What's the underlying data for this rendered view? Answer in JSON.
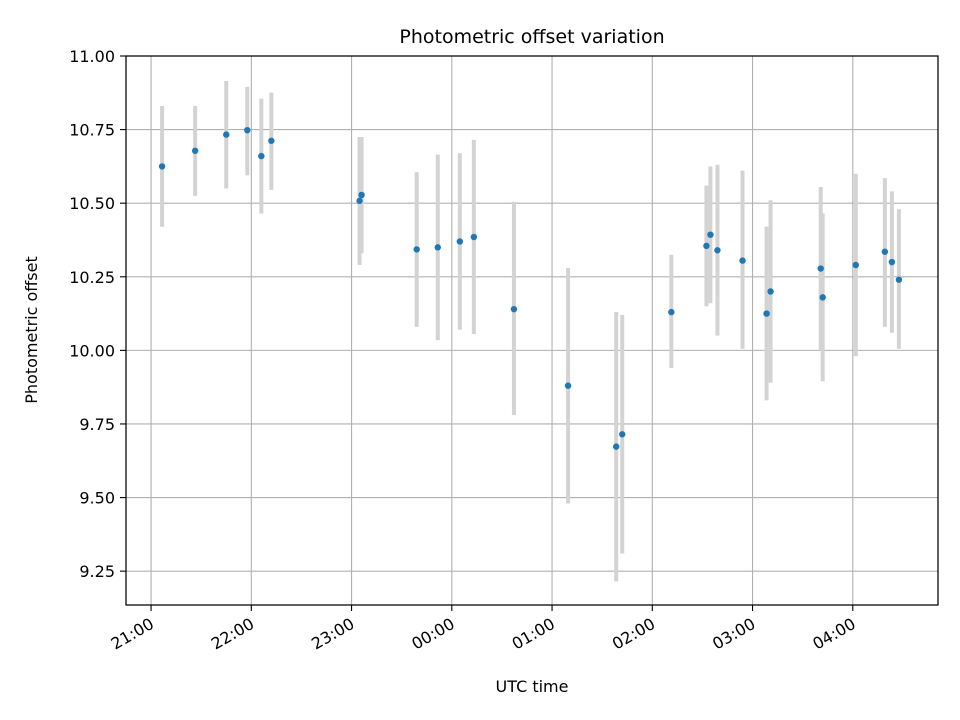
{
  "chart_data": {
    "type": "scatter",
    "title": "Photometric offset variation",
    "xlabel": "UTC time",
    "ylabel": "Photometric offset",
    "x_unit": "hours",
    "xlim": [
      20.75,
      28.85
    ],
    "ylim": [
      9.135,
      11.0
    ],
    "x_ticks": [
      {
        "value": 21,
        "label": "21:00"
      },
      {
        "value": 22,
        "label": "22:00"
      },
      {
        "value": 23,
        "label": "23:00"
      },
      {
        "value": 24,
        "label": "00:00"
      },
      {
        "value": 25,
        "label": "01:00"
      },
      {
        "value": 26,
        "label": "02:00"
      },
      {
        "value": 27,
        "label": "03:00"
      },
      {
        "value": 28,
        "label": "04:00"
      }
    ],
    "y_ticks": [
      {
        "value": 9.25,
        "label": "9.25"
      },
      {
        "value": 9.5,
        "label": "9.50"
      },
      {
        "value": 9.75,
        "label": "9.75"
      },
      {
        "value": 10.0,
        "label": "10.00"
      },
      {
        "value": 10.25,
        "label": "10.25"
      },
      {
        "value": 10.5,
        "label": "10.50"
      },
      {
        "value": 10.75,
        "label": "10.75"
      },
      {
        "value": 11.0,
        "label": "11.00"
      }
    ],
    "grid": true,
    "colors": {
      "point": "#1f77b4",
      "error_bar": "#d3d3d3",
      "grid": "#b0b0b0"
    },
    "points": [
      {
        "x": 21.11,
        "y": 10.625,
        "err_low": 10.42,
        "err_high": 10.83
      },
      {
        "x": 21.44,
        "y": 10.678,
        "err_low": 10.525,
        "err_high": 10.83
      },
      {
        "x": 21.75,
        "y": 10.733,
        "err_low": 10.55,
        "err_high": 10.915
      },
      {
        "x": 21.96,
        "y": 10.748,
        "err_low": 10.595,
        "err_high": 10.895
      },
      {
        "x": 22.1,
        "y": 10.66,
        "err_low": 10.465,
        "err_high": 10.855
      },
      {
        "x": 22.2,
        "y": 10.712,
        "err_low": 10.545,
        "err_high": 10.875
      },
      {
        "x": 23.08,
        "y": 10.508,
        "err_low": 10.29,
        "err_high": 10.725
      },
      {
        "x": 23.1,
        "y": 10.528,
        "err_low": 10.33,
        "err_high": 10.725
      },
      {
        "x": 23.65,
        "y": 10.343,
        "err_low": 10.08,
        "err_high": 10.605
      },
      {
        "x": 23.86,
        "y": 10.35,
        "err_low": 10.035,
        "err_high": 10.665
      },
      {
        "x": 24.08,
        "y": 10.37,
        "err_low": 10.07,
        "err_high": 10.67
      },
      {
        "x": 24.22,
        "y": 10.385,
        "err_low": 10.055,
        "err_high": 10.715
      },
      {
        "x": 24.62,
        "y": 10.14,
        "err_low": 9.78,
        "err_high": 10.505
      },
      {
        "x": 25.16,
        "y": 9.88,
        "err_low": 9.48,
        "err_high": 10.28
      },
      {
        "x": 25.64,
        "y": 9.673,
        "err_low": 9.215,
        "err_high": 10.13
      },
      {
        "x": 25.7,
        "y": 9.715,
        "err_low": 9.31,
        "err_high": 10.12
      },
      {
        "x": 26.19,
        "y": 10.13,
        "err_low": 9.94,
        "err_high": 10.325
      },
      {
        "x": 26.54,
        "y": 10.355,
        "err_low": 10.15,
        "err_high": 10.56
      },
      {
        "x": 26.58,
        "y": 10.393,
        "err_low": 10.16,
        "err_high": 10.625
      },
      {
        "x": 26.65,
        "y": 10.34,
        "err_low": 10.05,
        "err_high": 10.63
      },
      {
        "x": 26.9,
        "y": 10.305,
        "err_low": 10.005,
        "err_high": 10.61
      },
      {
        "x": 27.14,
        "y": 10.125,
        "err_low": 9.83,
        "err_high": 10.42
      },
      {
        "x": 27.18,
        "y": 10.2,
        "err_low": 9.89,
        "err_high": 10.51
      },
      {
        "x": 27.68,
        "y": 10.278,
        "err_low": 10.0,
        "err_high": 10.555
      },
      {
        "x": 27.7,
        "y": 10.18,
        "err_low": 9.895,
        "err_high": 10.465
      },
      {
        "x": 28.03,
        "y": 10.29,
        "err_low": 9.98,
        "err_high": 10.6
      },
      {
        "x": 28.32,
        "y": 10.335,
        "err_low": 10.08,
        "err_high": 10.585
      },
      {
        "x": 28.39,
        "y": 10.3,
        "err_low": 10.06,
        "err_high": 10.54
      },
      {
        "x": 28.46,
        "y": 10.24,
        "err_low": 10.005,
        "err_high": 10.48
      }
    ]
  }
}
